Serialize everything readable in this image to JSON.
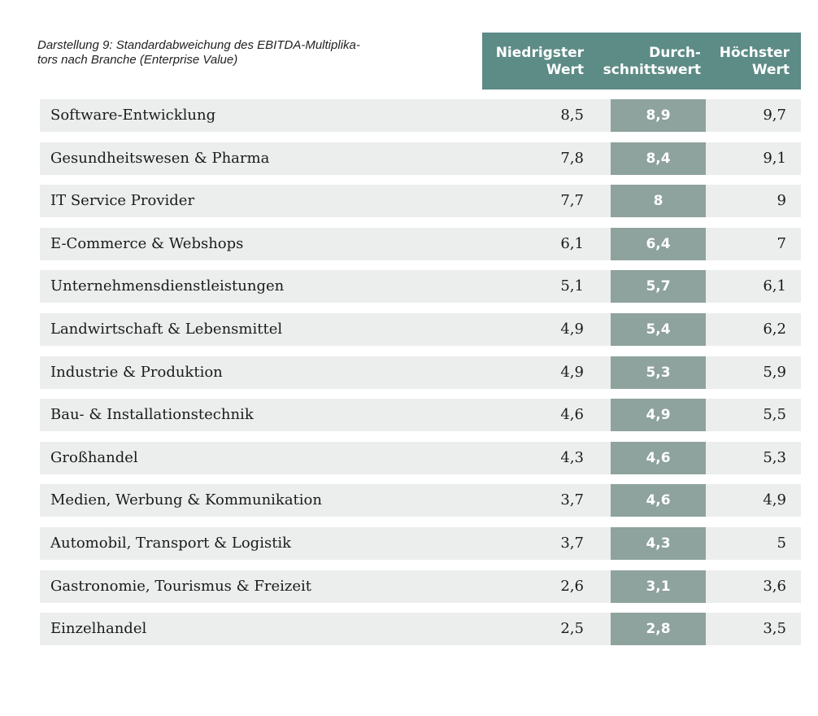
{
  "caption": [
    "Darstellung 9: Standardabweichung des EBITDA-Multiplika-",
    "tors nach Branche (Enterprise Value)"
  ],
  "table": {
    "header": [
      [
        "Niedrigster",
        "Wert"
      ],
      [
        "Durch-",
        "schnittswert"
      ],
      [
        "Höchster",
        "Wert"
      ]
    ],
    "rows": [
      [
        "Software-Entwicklung",
        "8,5",
        "8,9",
        "9,7"
      ],
      [
        "Gesundheitswesen & Pharma",
        "7,8",
        "8,4",
        "9,1"
      ],
      [
        "IT Service Provider",
        "7,7",
        "8",
        "9"
      ],
      [
        "E-Commerce & Webshops",
        "6,1",
        "6,4",
        "7"
      ],
      [
        "Unternehmensdienstleistungen",
        "5,1",
        "5,7",
        "6,1"
      ],
      [
        "Landwirtschaft & Lebensmittel",
        "4,9",
        "5,4",
        "6,2"
      ],
      [
        "Industrie & Produktion",
        "4,9",
        "5,3",
        "5,9"
      ],
      [
        "Bau- & Installationstechnik",
        "4,6",
        "4,9",
        "5,5"
      ],
      [
        "Großhandel",
        "4,3",
        "4,6",
        "5,3"
      ],
      [
        "Medien, Werbung & Kommunikation",
        "3,7",
        "4,6",
        "4,9"
      ],
      [
        "Automobil, Transport & Logistik",
        "3,7",
        "4,3",
        "5"
      ],
      [
        "Gastronomie, Tourismus & Freizeit",
        "2,6",
        "3,1",
        "3,6"
      ],
      [
        "Einzelhandel",
        "2,5",
        "2,8",
        "3,5"
      ]
    ]
  }
}
